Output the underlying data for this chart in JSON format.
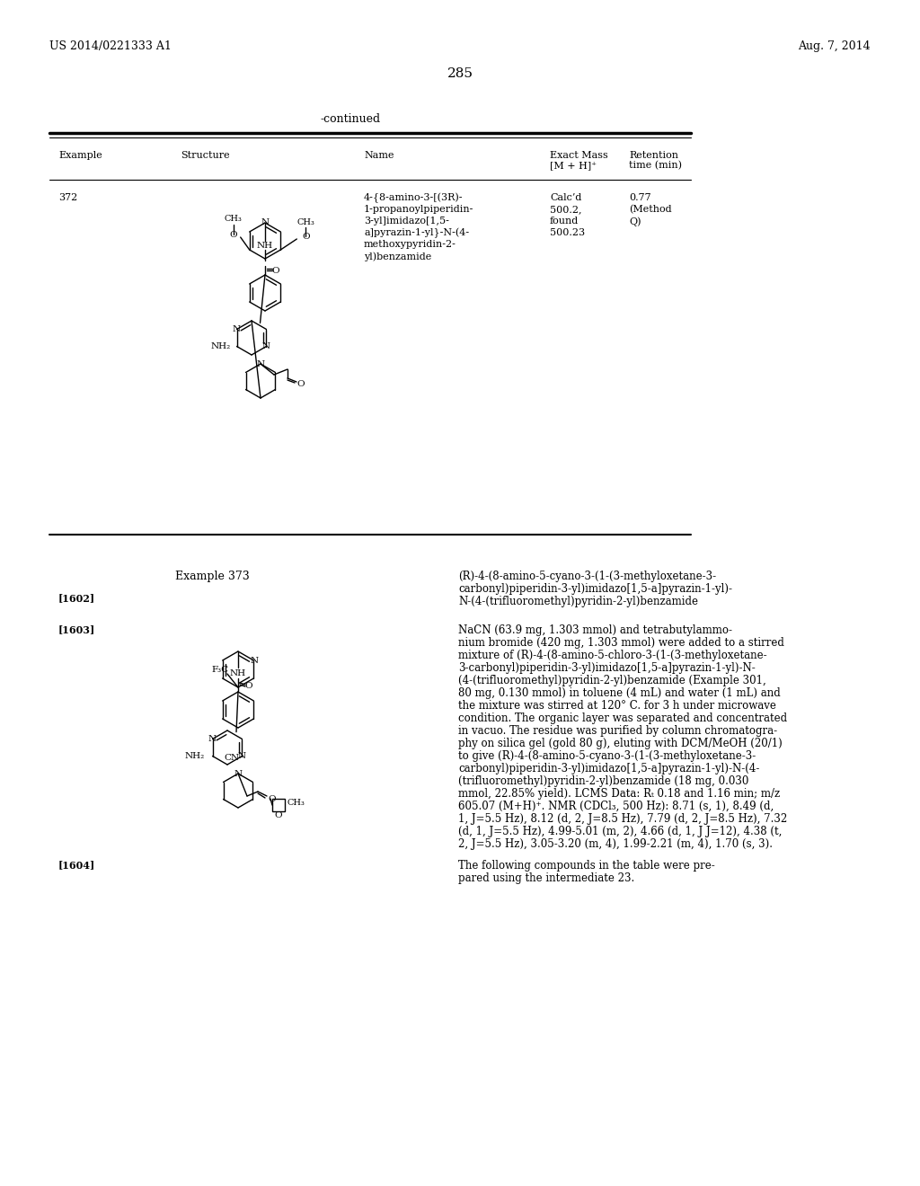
{
  "bg_color": "#ffffff",
  "header_left": "US 2014/0221333 A1",
  "header_right": "Aug. 7, 2014",
  "page_number": "285",
  "continued_text": "-continued",
  "table_headers": [
    "Example",
    "Structure",
    "Name",
    "Exact Mass\n[M + H]⁺",
    "Retention\ntime (min)"
  ],
  "example_number": "372",
  "compound_name_372": "4-{8-amino-3-[(3R)-\n1-propanoylpiperidin-\n3-yl]imidazo[1,5-\na]pyrazin-1-yl}-N-(4-\nmethoxypyridin-2-\nyl)benzamide",
  "exact_mass_372": "Calc’d\n500.2,\nfound\n500.23",
  "retention_time_372": "0.77\n(Method\nQ)",
  "example_373_label": "Example 373",
  "ref_number": "[1602]",
  "compound_name_373": "(R)-4-(8-amino-5-cyano-3-(1-(3-methyloxetane-3-\ncarbonyl)piperidin-3-yl)imidazo[1,5-a]pyrazin-1-yl)-\nN-(4-(trifluoromethyl)pyridin-2-yl)benzamide",
  "para_1603_label": "[1603]",
  "para_1603_text": "NaCN (63.9 mg, 1.303 mmol) and tetrabutylammo-\nnium bromide (420 mg, 1.303 mmol) were added to a stirred\nmixture of (R)-4-(8-amino-5-chloro-3-(1-(3-methyloxetane-\n3-carbonyl)piperidin-3-yl)imidazo[1,5-a]pyrazin-1-yl)-N-\n(4-(trifluoromethyl)pyridin-2-yl)benzamide (Example 301,\n80 mg, 0.130 mmol) in toluene (4 mL) and water (1 mL) and\nthe mixture was stirred at 120° C. for 3 h under microwave\ncondition. The organic layer was separated and concentrated\nin vacuo. The residue was purified by column chromatogra-\nphy on silica gel (gold 80 g), eluting with DCM/MeOH (20/1)\nto give (R)-4-(8-amino-5-cyano-3-(1-(3-methyloxetane-3-\ncarbonyl)piperidin-3-yl)imidazo[1,5-a]pyrazin-1-yl)-N-(4-\n(trifluoromethyl)pyridin-2-yl)benzamide (18 mg, 0.030\nmmol, 22.85% yield). LCMS Data: Rₜ 0.18 and 1.16 min; m/z\n605.07 (M+H)⁺. NMR (CDCl₃, 500 Hz): 8.71 (s, 1), 8.49 (d,\n1, J=5.5 Hz), 8.12 (d, 2, J=8.5 Hz), 7.79 (d, 2, J=8.5 Hz), 7.32\n(d, 1, J=5.5 Hz), 4.99-5.01 (m, 2), 4.66 (d, 1, J J=12), 4.38 (t,\n2, J=5.5 Hz), 3.05-3.20 (m, 4), 1.99-2.21 (m, 4), 1.70 (s, 3).",
  "para_1604_label": "[1604]",
  "para_1604_text": "The following compounds in the table were pre-\npared using the intermediate 23."
}
